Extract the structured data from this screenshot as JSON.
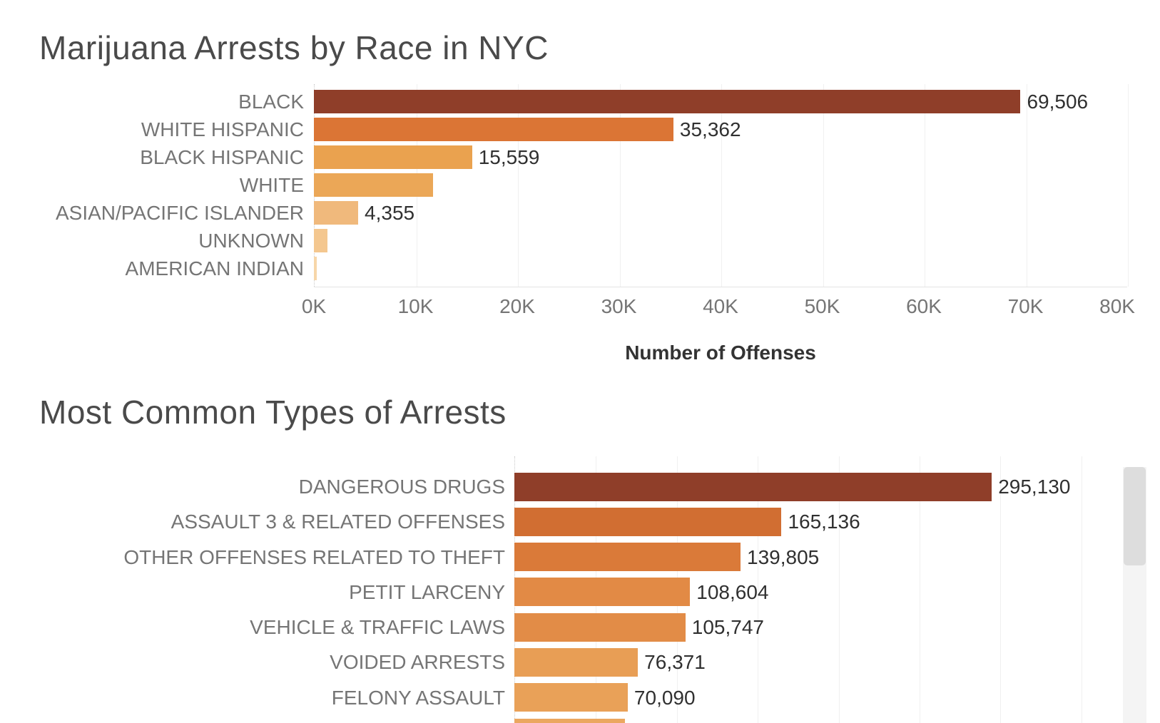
{
  "ui": {
    "background": "#FFFFFF",
    "title_color": "#4A4A4A",
    "category_label_color": "#757575",
    "value_label_color": "#303030",
    "tick_label_color": "#757575",
    "axis_title_color": "#333333",
    "gridline_color": "#F0F0F0",
    "baseline_color": "#C9C9C9",
    "axisline_color": "#E4E4E4",
    "scrollbar": {
      "track": "#F4F4F4",
      "thumb": "#DDDDDD"
    }
  },
  "chart_data": [
    {
      "type": "bar",
      "orientation": "horizontal",
      "title": "Marijuana Arrests by Race in NYC",
      "xlabel": "Number of Offenses",
      "legend": "none",
      "grid": "vertical",
      "axis": {
        "max": 80000,
        "gridline_interval": 10000,
        "ticks": [
          "0K",
          "10K",
          "20K",
          "30K",
          "40K",
          "50K",
          "60K",
          "70K",
          "80K"
        ]
      },
      "rows": [
        {
          "label": "BLACK",
          "value": 69506,
          "value_label": "69,506",
          "color": "#8F3E29"
        },
        {
          "label": "WHITE HISPANIC",
          "value": 35362,
          "value_label": "35,362",
          "color": "#DB7535"
        },
        {
          "label": "BLACK HISPANIC",
          "value": 15559,
          "value_label": "15,559",
          "color": "#EAA24F"
        },
        {
          "label": "WHITE",
          "value": 11700,
          "value_label": "",
          "color": "#EBA757"
        },
        {
          "label": "ASIAN/PACIFIC ISLANDER",
          "value": 4355,
          "value_label": "4,355",
          "color": "#F0B97C"
        },
        {
          "label": "UNKNOWN",
          "value": 1300,
          "value_label": "",
          "color": "#F4C78F"
        },
        {
          "label": "AMERICAN INDIAN",
          "value": 300,
          "value_label": "",
          "color": "#F7D6A9"
        }
      ]
    },
    {
      "type": "bar",
      "orientation": "horizontal",
      "title": "Most Common Types of Arrests",
      "xlabel": "",
      "legend": "none",
      "grid": "vertical",
      "axis": {
        "max": 370000,
        "gridline_interval": 50000,
        "ticks": []
      },
      "rows": [
        {
          "label": "DANGEROUS DRUGS",
          "value": 295130,
          "value_label": "295,130",
          "color": "#8F3E29"
        },
        {
          "label": "ASSAULT 3 & RELATED OFFENSES",
          "value": 165136,
          "value_label": "165,136",
          "color": "#D16E32"
        },
        {
          "label": "OTHER OFFENSES RELATED TO THEFT",
          "value": 139805,
          "value_label": "139,805",
          "color": "#DA7A39"
        },
        {
          "label": "PETIT LARCENY",
          "value": 108604,
          "value_label": "108,604",
          "color": "#E28A45"
        },
        {
          "label": "VEHICLE & TRAFFIC LAWS",
          "value": 105747,
          "value_label": "105,747",
          "color": "#E28C47"
        },
        {
          "label": "VOIDED ARRESTS",
          "value": 76371,
          "value_label": "76,371",
          "color": "#E89E55"
        },
        {
          "label": "FELONY ASSAULT",
          "value": 70090,
          "value_label": "70,090",
          "color": "#E9A158"
        },
        {
          "label": "",
          "value": 68500,
          "value_label": "",
          "color": "#EBA760"
        }
      ]
    }
  ]
}
